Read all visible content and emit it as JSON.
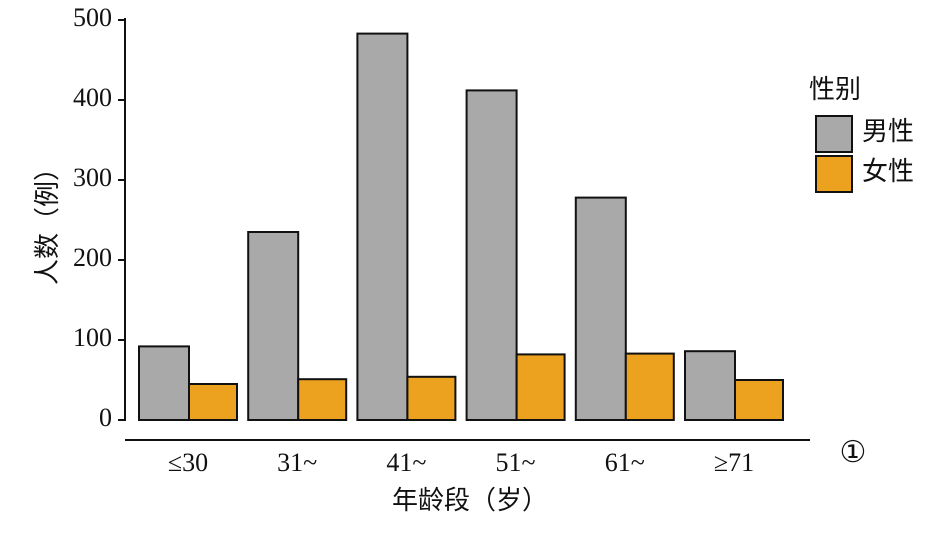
{
  "chart_data": {
    "type": "bar",
    "categories": [
      "≤30",
      "31~",
      "41~",
      "51~",
      "61~",
      "≥71"
    ],
    "series": [
      {
        "name": "男性",
        "color": "#a9a9a9",
        "values": [
          92,
          235,
          483,
          412,
          278,
          86
        ]
      },
      {
        "name": "女性",
        "color": "#eca21f",
        "values": [
          45,
          51,
          54,
          82,
          83,
          50
        ]
      }
    ],
    "y_label": "人数（例）",
    "x_label": "年龄段（岁）",
    "legend_title": "性别",
    "annotation": "①",
    "ylim": [
      0,
      500
    ],
    "yticks": [
      0,
      100,
      200,
      300,
      400,
      500
    ]
  }
}
